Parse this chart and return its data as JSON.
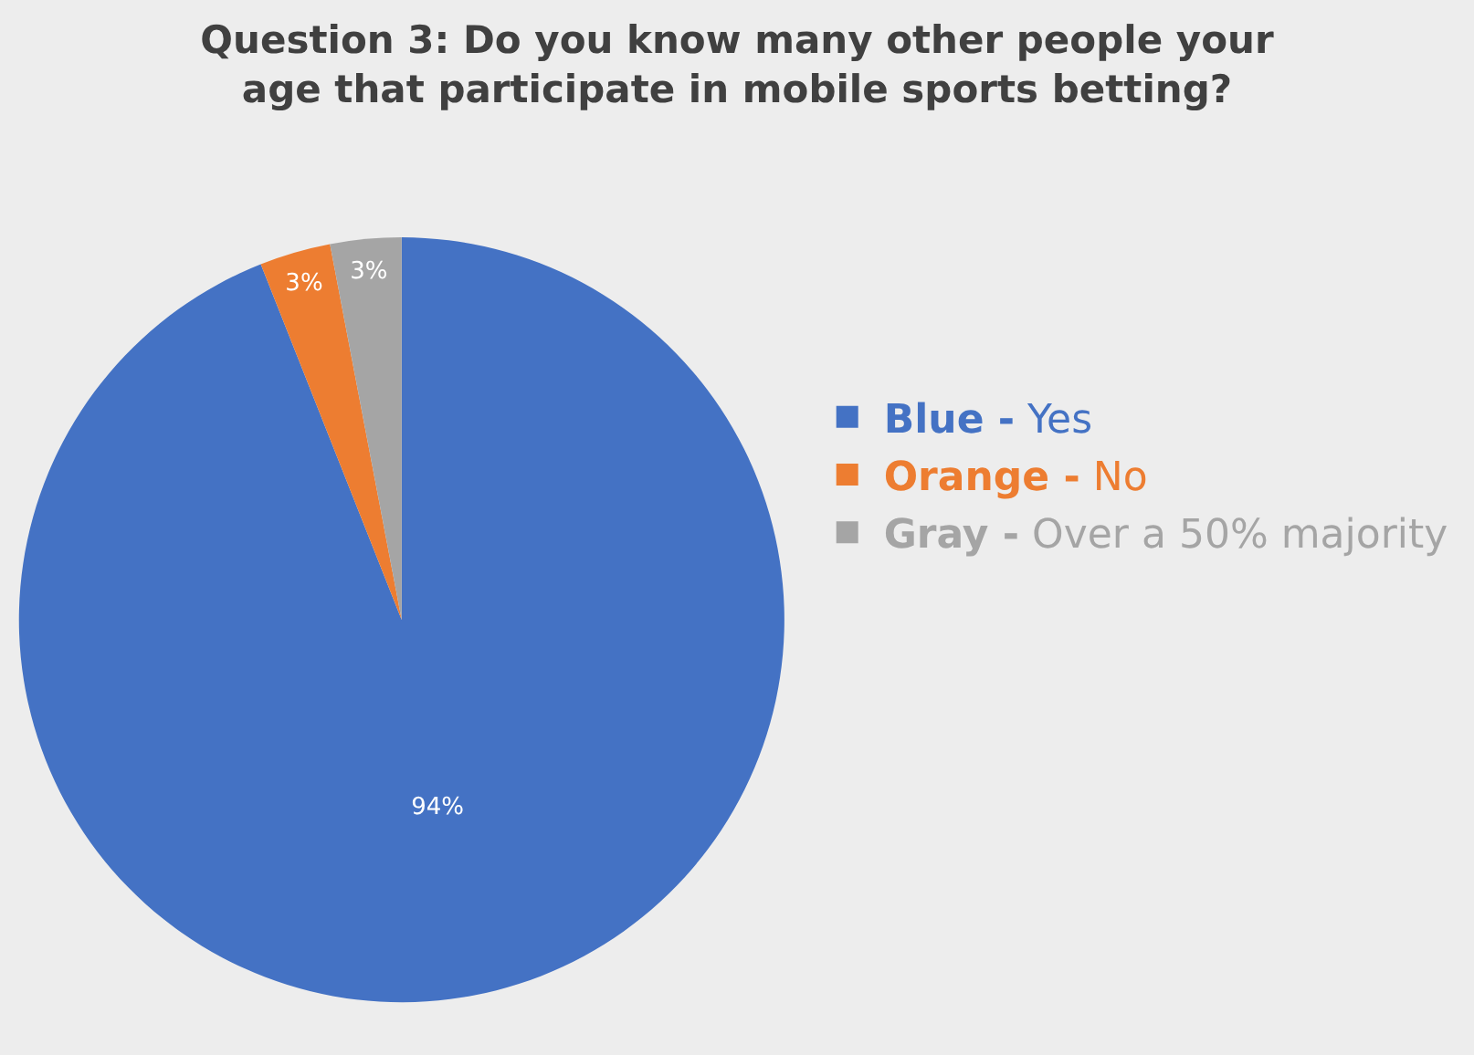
{
  "chart_data": {
    "type": "pie",
    "title": "Question 3: Do you know many other people your age that participate in mobile sports betting?",
    "categories": [
      "Blue - Yes",
      "Orange - No",
      "Gray - Over a 50% majority"
    ],
    "values": [
      94,
      3,
      3
    ],
    "colors": [
      "#4472c4",
      "#ed7d31",
      "#a5a5a5"
    ],
    "value_labels": [
      "94%",
      "3%",
      "3%"
    ],
    "legend": "right"
  }
}
